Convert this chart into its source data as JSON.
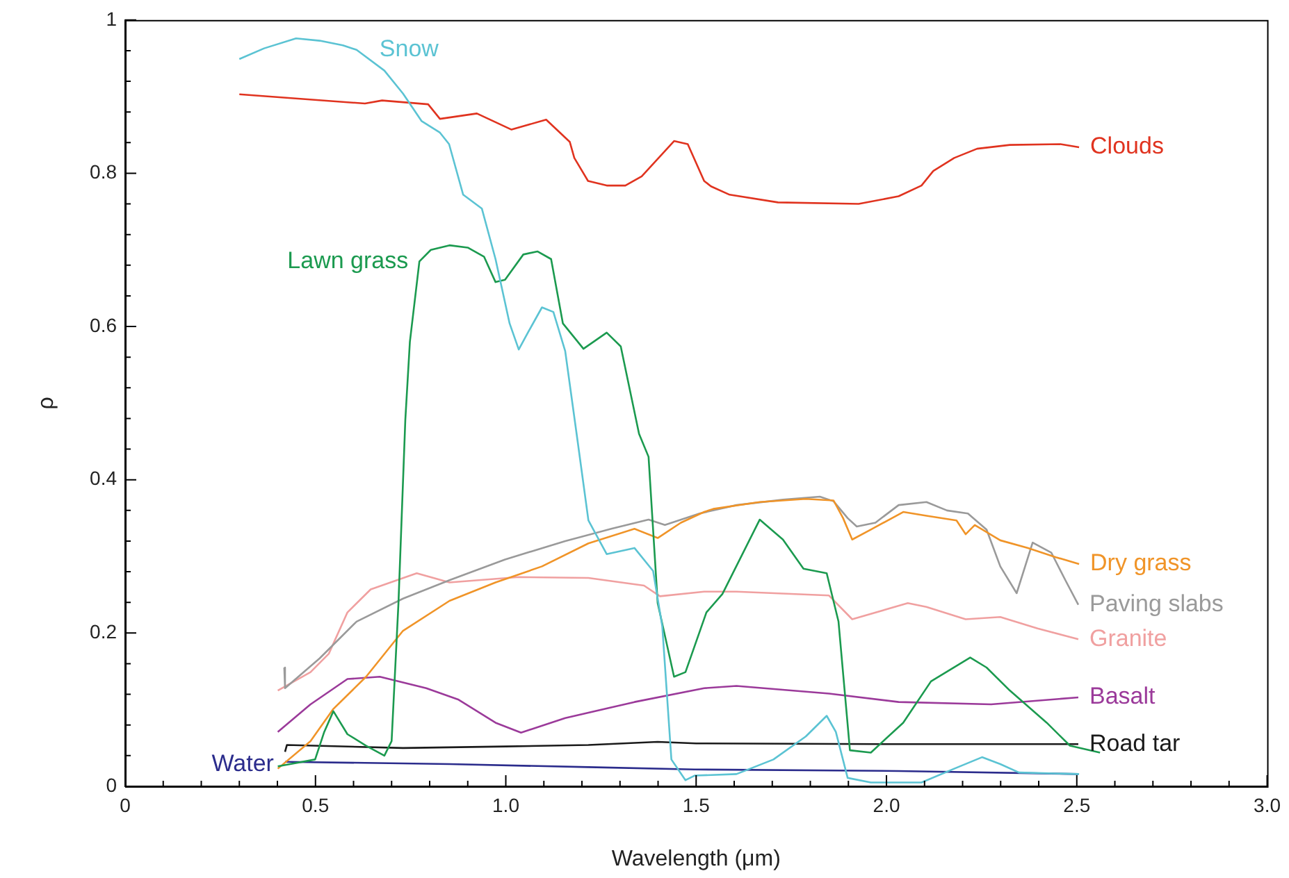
{
  "chart_data": {
    "type": "line",
    "xlabel": "Wavelength (μm)",
    "ylabel": "ρ",
    "xlim": [
      0,
      3
    ],
    "ylim": [
      0,
      1
    ],
    "xticks": [
      0,
      {
        "value": 0.1,
        "label": null
      },
      {
        "value": 0.2,
        "label": null
      },
      {
        "value": 0.3,
        "label": null
      },
      {
        "value": 0.4,
        "label": null
      },
      0.5,
      {
        "value": 0.6,
        "label": null
      },
      {
        "value": 0.7,
        "label": null
      },
      {
        "value": 0.8,
        "label": null
      },
      {
        "value": 0.9,
        "label": null
      },
      {
        "value": 1,
        "label": "1.0"
      },
      {
        "value": 1.1,
        "label": null
      },
      {
        "value": 1.2,
        "label": null
      },
      {
        "value": 1.3,
        "label": null
      },
      {
        "value": 1.4,
        "label": null
      },
      1.5,
      {
        "value": 1.6,
        "label": null
      },
      {
        "value": 1.7,
        "label": null
      },
      {
        "value": 1.8,
        "label": null
      },
      {
        "value": 1.9,
        "label": null
      },
      {
        "value": 2,
        "label": "2.0"
      },
      {
        "value": 2.1,
        "label": null
      },
      {
        "value": 2.2,
        "label": null
      },
      {
        "value": 2.3,
        "label": null
      },
      {
        "value": 2.4,
        "label": null
      },
      2.5,
      {
        "value": 2.6,
        "label": null
      },
      {
        "value": 2.7,
        "label": null
      },
      {
        "value": 2.8,
        "label": null
      },
      {
        "value": 2.9,
        "label": null
      },
      {
        "value": 3,
        "label": "3.0"
      }
    ],
    "yticks": [
      0,
      {
        "value": 0.04,
        "label": null
      },
      {
        "value": 0.08,
        "label": null
      },
      {
        "value": 0.12,
        "label": null
      },
      {
        "value": 0.16,
        "label": null
      },
      0.2,
      {
        "value": 0.24,
        "label": null
      },
      {
        "value": 0.28,
        "label": null
      },
      {
        "value": 0.32,
        "label": null
      },
      {
        "value": 0.36,
        "label": null
      },
      0.4,
      {
        "value": 0.44,
        "label": null
      },
      {
        "value": 0.48,
        "label": null
      },
      {
        "value": 0.52,
        "label": null
      },
      {
        "value": 0.56,
        "label": null
      },
      0.6,
      {
        "value": 0.64,
        "label": null
      },
      {
        "value": 0.68,
        "label": null
      },
      {
        "value": 0.72,
        "label": null
      },
      {
        "value": 0.76,
        "label": null
      },
      0.8,
      {
        "value": 0.84,
        "label": null
      },
      {
        "value": 0.88,
        "label": null
      },
      {
        "value": 0.92,
        "label": null
      },
      {
        "value": 0.96,
        "label": null
      },
      1
    ],
    "grid": false,
    "legend": false,
    "marker": "none",
    "line_style": "solid",
    "series": [
      {
        "name": "Snow",
        "color": "#5bc3d3",
        "x": [
          0.3,
          0.365,
          0.449,
          0.511,
          0.572,
          0.608,
          0.681,
          0.73,
          0.779,
          0.827,
          0.851,
          0.888,
          0.937,
          0.973,
          1.01,
          1.034,
          1.058,
          1.095,
          1.125,
          1.156,
          1.186,
          1.217,
          1.265,
          1.338,
          1.387,
          1.411,
          1.435,
          1.472,
          1.496,
          1.606,
          1.703,
          1.788,
          1.843,
          1.867,
          1.898,
          1.959,
          2.092,
          2.178,
          2.251,
          2.299,
          2.348,
          2.506
        ],
        "values": [
          0.949,
          0.963,
          0.976,
          0.973,
          0.967,
          0.961,
          0.934,
          0.904,
          0.868,
          0.853,
          0.838,
          0.772,
          0.754,
          0.688,
          0.604,
          0.57,
          0.592,
          0.625,
          0.619,
          0.568,
          0.46,
          0.347,
          0.303,
          0.311,
          0.281,
          0.209,
          0.035,
          0.008,
          0.014,
          0.016,
          0.035,
          0.065,
          0.092,
          0.071,
          0.011,
          0.005,
          0.005,
          0.023,
          0.038,
          0.029,
          0.018,
          0.016
        ]
      },
      {
        "name": "Clouds",
        "color": "#e0331f",
        "x": [
          0.3,
          0.63,
          0.675,
          0.796,
          0.827,
          0.924,
          1.015,
          1.106,
          1.168,
          1.18,
          1.216,
          1.265,
          1.314,
          1.357,
          1.442,
          1.478,
          1.521,
          1.539,
          1.588,
          1.715,
          1.927,
          2.032,
          2.092,
          2.123,
          2.178,
          2.238,
          2.324,
          2.457,
          2.506
        ],
        "values": [
          0.903,
          0.891,
          0.895,
          0.89,
          0.871,
          0.878,
          0.857,
          0.87,
          0.841,
          0.82,
          0.79,
          0.784,
          0.784,
          0.796,
          0.842,
          0.838,
          0.79,
          0.783,
          0.772,
          0.762,
          0.76,
          0.77,
          0.784,
          0.803,
          0.82,
          0.832,
          0.837,
          0.838,
          0.834
        ]
      },
      {
        "name": "Lawn grass",
        "color": "#1b9a4f",
        "x": [
          0.401,
          0.499,
          0.523,
          0.547,
          0.584,
          0.633,
          0.681,
          0.7,
          0.718,
          0.736,
          0.748,
          0.773,
          0.803,
          0.852,
          0.9,
          0.943,
          0.973,
          0.998,
          1.046,
          1.083,
          1.119,
          1.15,
          1.204,
          1.265,
          1.302,
          1.35,
          1.375,
          1.399,
          1.442,
          1.472,
          1.527,
          1.569,
          1.667,
          1.728,
          1.782,
          1.843,
          1.874,
          1.904,
          1.959,
          2.044,
          2.117,
          2.22,
          2.263,
          2.324,
          2.421,
          2.482,
          2.561
        ],
        "values": [
          0.026,
          0.035,
          0.071,
          0.098,
          0.068,
          0.053,
          0.04,
          0.059,
          0.239,
          0.478,
          0.58,
          0.685,
          0.7,
          0.706,
          0.703,
          0.691,
          0.658,
          0.661,
          0.694,
          0.698,
          0.688,
          0.604,
          0.571,
          0.592,
          0.574,
          0.46,
          0.43,
          0.239,
          0.143,
          0.149,
          0.227,
          0.251,
          0.348,
          0.322,
          0.284,
          0.278,
          0.215,
          0.047,
          0.044,
          0.083,
          0.137,
          0.168,
          0.155,
          0.125,
          0.083,
          0.053,
          0.044
        ]
      },
      {
        "name": "Dry grass",
        "color": "#f09428",
        "x": [
          0.401,
          0.487,
          0.547,
          0.633,
          0.73,
          0.852,
          0.973,
          1.095,
          1.217,
          1.338,
          1.399,
          1.46,
          1.521,
          1.545,
          1.667,
          1.788,
          1.861,
          1.886,
          1.91,
          1.959,
          2.044,
          2.105,
          2.184,
          2.208,
          2.232,
          2.299,
          2.372,
          2.445,
          2.506
        ],
        "values": [
          0.023,
          0.059,
          0.101,
          0.143,
          0.203,
          0.242,
          0.266,
          0.287,
          0.317,
          0.336,
          0.324,
          0.344,
          0.358,
          0.362,
          0.371,
          0.375,
          0.373,
          0.35,
          0.322,
          0.335,
          0.358,
          0.353,
          0.347,
          0.329,
          0.341,
          0.321,
          0.311,
          0.299,
          0.29
        ]
      },
      {
        "name": "Paving slabs",
        "color": "#9a9a9a",
        "x": [
          0.418,
          0.42,
          0.511,
          0.608,
          0.73,
          0.852,
          0.998,
          1.156,
          1.277,
          1.375,
          1.418,
          1.509,
          1.606,
          1.728,
          1.825,
          1.861,
          1.898,
          1.922,
          1.971,
          2.032,
          2.105,
          2.159,
          2.214,
          2.263,
          2.299,
          2.342,
          2.384,
          2.433,
          2.47,
          2.504
        ],
        "values": [
          0.155,
          0.128,
          0.167,
          0.215,
          0.245,
          0.269,
          0.296,
          0.32,
          0.336,
          0.348,
          0.341,
          0.356,
          0.367,
          0.374,
          0.378,
          0.372,
          0.35,
          0.339,
          0.344,
          0.367,
          0.371,
          0.36,
          0.356,
          0.335,
          0.287,
          0.252,
          0.318,
          0.305,
          0.269,
          0.237
        ]
      },
      {
        "name": "Granite",
        "color": "#f0a0a0",
        "x": [
          0.401,
          0.487,
          0.535,
          0.584,
          0.645,
          0.766,
          0.852,
          1.034,
          1.217,
          1.363,
          1.405,
          1.521,
          1.606,
          1.849,
          1.91,
          2.056,
          2.105,
          2.208,
          2.299,
          2.397,
          2.504
        ],
        "values": [
          0.125,
          0.149,
          0.173,
          0.227,
          0.257,
          0.278,
          0.266,
          0.273,
          0.272,
          0.262,
          0.248,
          0.254,
          0.254,
          0.249,
          0.218,
          0.239,
          0.234,
          0.218,
          0.221,
          0.206,
          0.192
        ]
      },
      {
        "name": "Basalt",
        "color": "#9b3a9a",
        "x": [
          0.401,
          0.487,
          0.584,
          0.669,
          0.791,
          0.876,
          0.973,
          1.04,
          1.156,
          1.338,
          1.521,
          1.606,
          1.849,
          2.032,
          2.275,
          2.504
        ],
        "values": [
          0.071,
          0.107,
          0.14,
          0.143,
          0.128,
          0.113,
          0.083,
          0.07,
          0.089,
          0.11,
          0.128,
          0.131,
          0.121,
          0.11,
          0.107,
          0.116
        ]
      },
      {
        "name": "Road tar",
        "color": "#1a1a1a",
        "x": [
          0.42,
          0.425,
          0.73,
          1.0,
          1.217,
          1.399,
          1.5,
          2.0,
          2.504
        ],
        "values": [
          0.045,
          0.054,
          0.05,
          0.052,
          0.054,
          0.058,
          0.056,
          0.055,
          0.055
        ]
      },
      {
        "name": "Water",
        "color": "#2b2c8c",
        "x": [
          0.42,
          0.852,
          1.217,
          1.496,
          2.032,
          2.504
        ],
        "values": [
          0.032,
          0.029,
          0.025,
          0.022,
          0.02,
          0.016
        ]
      }
    ]
  }
}
